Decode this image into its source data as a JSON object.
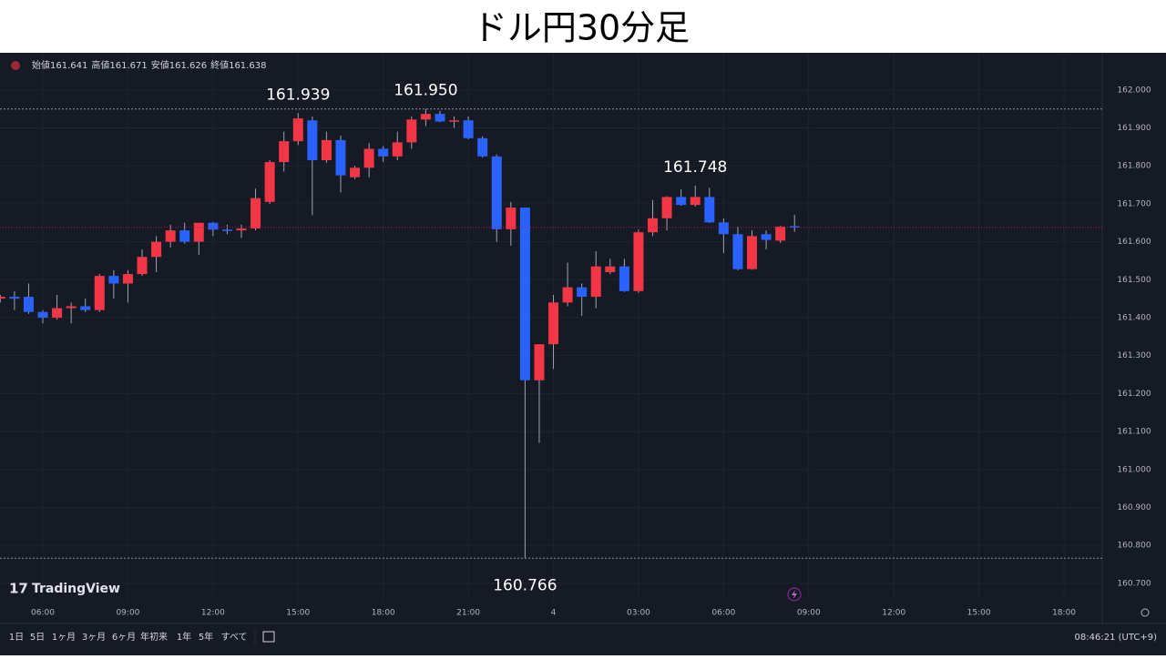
{
  "chart_data": {
    "type": "candlestick",
    "title": "ドル円30分足",
    "header": [
      {
        "label": "始値",
        "value": "161.641"
      },
      {
        "label": "高値",
        "value": "161.671"
      },
      {
        "label": "安値",
        "value": "161.626"
      },
      {
        "label": "終値",
        "value": "161.638"
      }
    ],
    "categories": [
      null,
      null,
      null,
      "06:00",
      null,
      null,
      null,
      null,
      null,
      "09:00",
      null,
      null,
      null,
      null,
      null,
      "12:00",
      null,
      null,
      null,
      null,
      null,
      "15:00",
      null,
      null,
      null,
      null,
      null,
      "18:00",
      null,
      null,
      null,
      null,
      null,
      "21:00",
      null,
      null,
      null,
      null,
      null,
      "4",
      null,
      null,
      null,
      null,
      null,
      "03:00",
      null,
      null,
      null,
      null,
      null,
      "06:00",
      null,
      null,
      null,
      null,
      null,
      "09:00",
      null,
      null,
      null,
      null,
      null,
      "12:00",
      null,
      null,
      null,
      null,
      null,
      "15:00",
      null,
      null,
      null,
      null,
      null,
      "18:00",
      null,
      null
    ],
    "open": [
      161.45,
      161.455,
      161.455,
      161.415,
      161.4,
      161.425,
      161.43,
      161.42,
      161.51,
      161.49,
      161.515,
      161.56,
      161.6,
      161.63,
      161.6,
      161.65,
      161.632,
      161.63,
      161.635,
      161.705,
      161.81,
      161.865,
      161.92,
      161.815,
      161.868,
      161.77,
      161.795,
      161.845,
      161.825,
      161.862,
      161.922,
      161.937,
      161.917,
      161.92,
      161.873,
      161.825,
      161.633,
      161.69,
      161.235,
      161.33,
      161.44,
      161.48,
      161.455,
      161.52,
      161.535,
      161.47,
      161.625,
      161.662,
      161.718,
      161.697,
      161.718,
      161.651,
      161.62,
      161.528,
      161.62,
      161.603,
      161.641,
      null,
      null,
      null,
      null,
      null,
      null,
      null,
      null,
      null,
      null,
      null,
      null,
      null,
      null,
      null,
      null,
      null,
      null,
      null,
      null,
      null
    ],
    "high": [
      161.46,
      161.47,
      161.49,
      161.42,
      161.46,
      161.44,
      161.45,
      161.515,
      161.525,
      161.525,
      161.58,
      161.615,
      161.645,
      161.65,
      161.65,
      161.652,
      161.645,
      161.645,
      161.74,
      161.815,
      161.89,
      161.939,
      161.93,
      161.89,
      161.88,
      161.8,
      161.86,
      161.852,
      161.89,
      161.93,
      161.95,
      161.945,
      161.93,
      161.93,
      161.878,
      161.83,
      161.705,
      161.69,
      161.33,
      161.46,
      161.545,
      161.49,
      161.575,
      161.555,
      161.555,
      161.632,
      161.71,
      161.72,
      161.738,
      161.748,
      161.742,
      161.662,
      161.64,
      161.63,
      161.63,
      161.642,
      161.671,
      null,
      null,
      null,
      null,
      null,
      null,
      null,
      null,
      null,
      null,
      null,
      null,
      null,
      null,
      null,
      null,
      null,
      null,
      null,
      null,
      null
    ],
    "low": [
      161.44,
      161.42,
      161.41,
      161.385,
      161.395,
      161.385,
      161.415,
      161.415,
      161.45,
      161.44,
      161.51,
      161.52,
      161.585,
      161.595,
      161.565,
      161.615,
      161.62,
      161.61,
      161.63,
      161.7,
      161.785,
      161.855,
      161.67,
      161.808,
      161.73,
      161.765,
      161.77,
      161.81,
      161.815,
      161.845,
      161.905,
      161.915,
      161.9,
      161.87,
      161.822,
      161.6,
      161.59,
      160.766,
      161.07,
      161.265,
      161.43,
      161.405,
      161.425,
      161.515,
      161.468,
      161.465,
      161.615,
      161.63,
      161.695,
      161.693,
      161.65,
      161.57,
      161.525,
      161.526,
      161.58,
      161.597,
      161.626,
      null,
      null,
      null,
      null,
      null,
      null,
      null,
      null,
      null,
      null,
      null,
      null,
      null,
      null,
      null,
      null,
      null,
      null,
      null,
      null,
      null
    ],
    "close": [
      161.455,
      161.45,
      161.415,
      161.4,
      161.425,
      161.43,
      161.42,
      161.51,
      161.49,
      161.515,
      161.56,
      161.6,
      161.63,
      161.6,
      161.65,
      161.632,
      161.63,
      161.635,
      161.715,
      161.81,
      161.865,
      161.925,
      161.815,
      161.868,
      161.775,
      161.795,
      161.845,
      161.825,
      161.862,
      161.922,
      161.937,
      161.917,
      161.92,
      161.873,
      161.825,
      161.633,
      161.69,
      161.235,
      161.33,
      161.44,
      161.48,
      161.455,
      161.535,
      161.535,
      161.47,
      161.625,
      161.662,
      161.718,
      161.697,
      161.718,
      161.651,
      161.62,
      161.528,
      161.615,
      161.605,
      161.64,
      161.638,
      null,
      null,
      null,
      null,
      null,
      null,
      null,
      null,
      null,
      null,
      null,
      null,
      null,
      null,
      null,
      null,
      null,
      null,
      null,
      null,
      null
    ],
    "up_color": "#f23645",
    "down_color": "#2962ff",
    "ylim": [
      160.654,
      162.098
    ],
    "yticks": [
      {
        "value": 160.7,
        "label": "160.700"
      },
      {
        "value": 160.8,
        "label": "160.800"
      },
      {
        "value": 160.9,
        "label": "160.900"
      },
      {
        "value": 161.0,
        "label": "161.000"
      },
      {
        "value": 161.1,
        "label": "161.100"
      },
      {
        "value": 161.2,
        "label": "161.200"
      },
      {
        "value": 161.3,
        "label": "161.300"
      },
      {
        "value": 161.4,
        "label": "161.400"
      },
      {
        "value": 161.5,
        "label": "161.500"
      },
      {
        "value": 161.6,
        "label": "161.600"
      },
      {
        "value": 161.7,
        "label": "161.700"
      },
      {
        "value": 161.8,
        "label": "161.800"
      },
      {
        "value": 161.9,
        "label": "161.900"
      },
      {
        "value": 162.0,
        "label": "162.000"
      }
    ],
    "annotations": [
      {
        "value": 161.939,
        "label": "161.939",
        "line": false
      },
      {
        "value": 161.95,
        "label": "161.950",
        "line": true
      },
      {
        "value": 161.748,
        "label": "161.748",
        "line": false
      },
      {
        "value": 160.766,
        "label": "160.766",
        "line": true
      }
    ],
    "grid": true,
    "last_price_line": true
  },
  "logo": "TradingView",
  "toolbar": {
    "ranges": [
      "1日",
      "5日",
      "1ヶ月",
      "3ヶ月",
      "6ヶ月",
      "年初来",
      "1年",
      "5年",
      "すべて"
    ],
    "clock": "08:46:21 (UTC+9)"
  }
}
